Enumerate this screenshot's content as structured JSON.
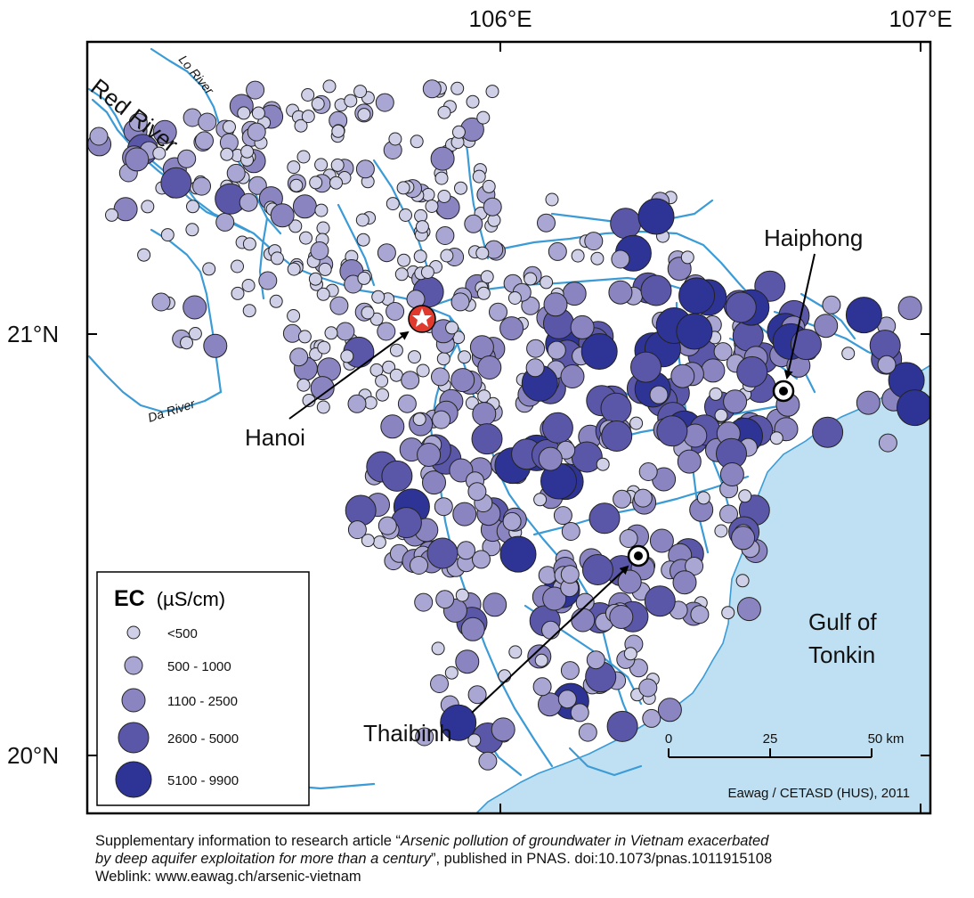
{
  "axes": {
    "lon_labels": [
      "106°E",
      "107°E"
    ],
    "lat_labels": [
      "21°N",
      "20°N"
    ]
  },
  "rivers": {
    "red": "Red River",
    "lo": "Lo River",
    "da": "Da River"
  },
  "cities": {
    "hanoi": "Hanoi",
    "haiphong": "Haiphong",
    "thaibinh": "Thaibinh"
  },
  "sea": {
    "line1": "Gulf of",
    "line2": "Tonkin"
  },
  "legend": {
    "title_bold": "EC",
    "title_unit": "(µS/cm)",
    "classes": [
      {
        "label": "<500",
        "color": "#cfd0e8"
      },
      {
        "label": "500 - 1000",
        "color": "#a9a6d3"
      },
      {
        "label": "1100 - 2500",
        "color": "#8a84c0"
      },
      {
        "label": "2600 - 5000",
        "color": "#5b57a8"
      },
      {
        "label": "5100 - 9900",
        "color": "#2e3496"
      }
    ]
  },
  "scalebar": {
    "ticks": [
      "0",
      "25",
      "50 km"
    ]
  },
  "credit": "Eawag / CETASD (HUS), 2011",
  "caption": {
    "line1_prefix": "Supplementary information to research article “",
    "line1_title": "Arsenic pollution of groundwater in Vietnam exacerbated",
    "line2_title": "by deep aquifer exploitation for more than a century",
    "line2_suffix": "”, published in PNAS. doi:10.1073/pnas.1011915108",
    "line3": "Weblink: www.eawag.ch/arsenic-vietnam"
  },
  "colors": {
    "sea": "#bfe0f2",
    "river": "#3b9bd6",
    "frame": "#000000",
    "hanoi_marker": "#e03a2f"
  }
}
